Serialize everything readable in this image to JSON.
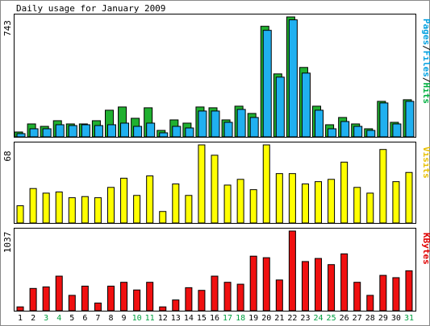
{
  "chart_data": {
    "type": "bar",
    "title": "Daily usage for January 2009",
    "categories": [
      "1",
      "2",
      "3",
      "4",
      "5",
      "6",
      "7",
      "8",
      "9",
      "10",
      "11",
      "12",
      "13",
      "14",
      "15",
      "16",
      "17",
      "18",
      "19",
      "20",
      "21",
      "22",
      "23",
      "24",
      "25",
      "26",
      "27",
      "28",
      "29",
      "30",
      "31"
    ],
    "weekend_days": [
      "3",
      "4",
      "10",
      "11",
      "17",
      "18",
      "24",
      "25",
      "31"
    ],
    "panels": [
      {
        "id": "usage",
        "max_label": "743",
        "ymax": 743,
        "right_label": [
          "Pages",
          "/",
          "Files",
          "/",
          "Hits"
        ],
        "right_label_colors": [
          "#00a0e0",
          "#000000",
          "#00a0e0",
          "#000000",
          "#00b040"
        ],
        "series": [
          {
            "name": "Hits",
            "color": "#20b030",
            "values": [
              30,
              80,
              65,
              100,
              80,
              80,
              100,
              165,
              185,
              115,
              180,
              40,
              105,
              85,
              185,
              180,
              105,
              190,
              145,
              685,
              390,
              743,
              430,
              190,
              75,
              120,
              80,
              50,
              220,
              90,
              230
            ]
          },
          {
            "name": "Files",
            "color": "#20b0f0",
            "values": [
              20,
              50,
              50,
              75,
              70,
              75,
              70,
              75,
              85,
              65,
              85,
              25,
              65,
              55,
              160,
              160,
              90,
              170,
              120,
              660,
              370,
              725,
              395,
              165,
              50,
              95,
              65,
              40,
              210,
              80,
              220
            ]
          },
          {
            "name": "Pages",
            "color": "#0070d0",
            "values": []
          }
        ]
      },
      {
        "id": "visits",
        "max_label": "68",
        "ymax": 68,
        "right_label": [
          "Visits"
        ],
        "right_label_colors": [
          "#e8c000"
        ],
        "series": [
          {
            "name": "Visits",
            "color": "#ffff00",
            "values": [
              15,
              30,
              26,
              27,
              22,
              23,
              22,
              31,
              39,
              24,
              41,
              10,
              34,
              24,
              68,
              59,
              33,
              38,
              29,
              68,
              43,
              43,
              34,
              36,
              38,
              53,
              31,
              26,
              64,
              36,
              44
            ]
          }
        ]
      },
      {
        "id": "kbytes",
        "max_label": "1037",
        "ymax": 1037,
        "right_label": [
          "KBytes"
        ],
        "right_label_colors": [
          "#e00000"
        ],
        "series": [
          {
            "name": "KBytes",
            "color": "#f01010",
            "values": [
              50,
              290,
              310,
              450,
              200,
              320,
              100,
              320,
              370,
              270,
              370,
              50,
              140,
              300,
              265,
              450,
              370,
              345,
              710,
              690,
              400,
              1037,
              640,
              680,
              600,
              740,
              370,
              200,
              460,
              430,
              520
            ]
          }
        ]
      }
    ]
  }
}
